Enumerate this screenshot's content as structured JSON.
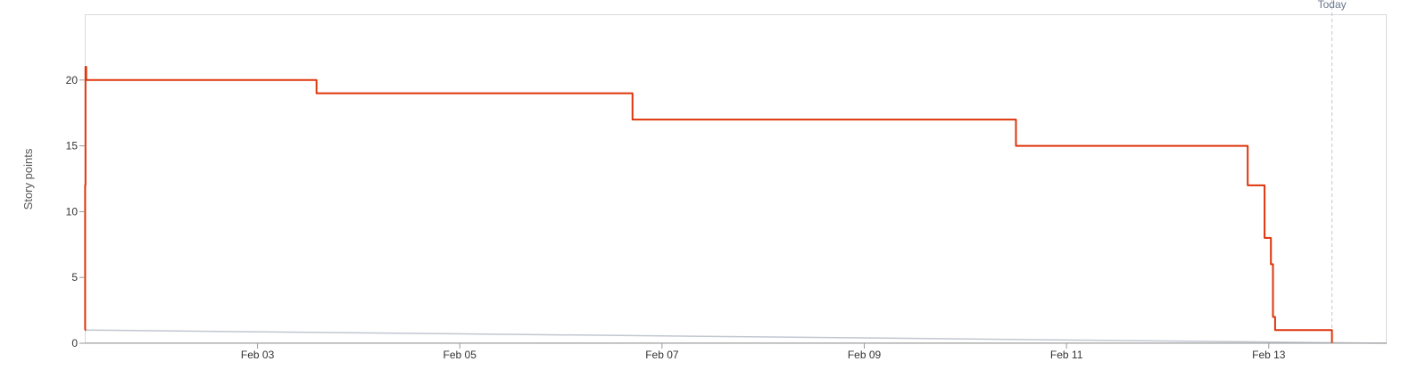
{
  "chart_data": {
    "type": "line",
    "title": "",
    "xlabel": "",
    "ylabel": "Story points",
    "xlim": [
      "2026-02-01T07:00",
      "2026-02-14T04:00"
    ],
    "ylim": [
      0,
      25
    ],
    "y_ticks": [
      0,
      5,
      10,
      15,
      20
    ],
    "x_ticks": [
      {
        "date": "2026-02-03",
        "label": "Feb 03"
      },
      {
        "date": "2026-02-05",
        "label": "Feb 05"
      },
      {
        "date": "2026-02-07",
        "label": "Feb 07"
      },
      {
        "date": "2026-02-09",
        "label": "Feb 09"
      },
      {
        "date": "2026-02-11",
        "label": "Feb 11"
      },
      {
        "date": "2026-02-13",
        "label": "Feb 13"
      }
    ],
    "grid": false,
    "today_marker": {
      "date": "2026-02-13T15:00",
      "label": "Today"
    },
    "series": [
      {
        "color": "#de350b",
        "step": true,
        "points": [
          {
            "x": "2026-02-01T07:00",
            "y": 1
          },
          {
            "x": "2026-02-01T07:05",
            "y": 12
          },
          {
            "x": "2026-02-01T07:10",
            "y": 21
          },
          {
            "x": "2026-02-01T07:20",
            "y": 20
          },
          {
            "x": "2026-02-03T14:00",
            "y": 19
          },
          {
            "x": "2026-02-06T17:00",
            "y": 17
          },
          {
            "x": "2026-02-10T12:00",
            "y": 15
          },
          {
            "x": "2026-02-12T19:00",
            "y": 12
          },
          {
            "x": "2026-02-12T23:00",
            "y": 8
          },
          {
            "x": "2026-02-13T00:30",
            "y": 6
          },
          {
            "x": "2026-02-13T01:00",
            "y": 2
          },
          {
            "x": "2026-02-13T01:30",
            "y": 1
          },
          {
            "x": "2026-02-13T15:00",
            "y": 0
          }
        ]
      },
      {
        "color": "#c1c7d0",
        "step": false,
        "points": [
          {
            "x": "2026-02-01T07:00",
            "y": 1
          },
          {
            "x": "2026-02-14T04:00",
            "y": 0
          }
        ]
      }
    ]
  }
}
